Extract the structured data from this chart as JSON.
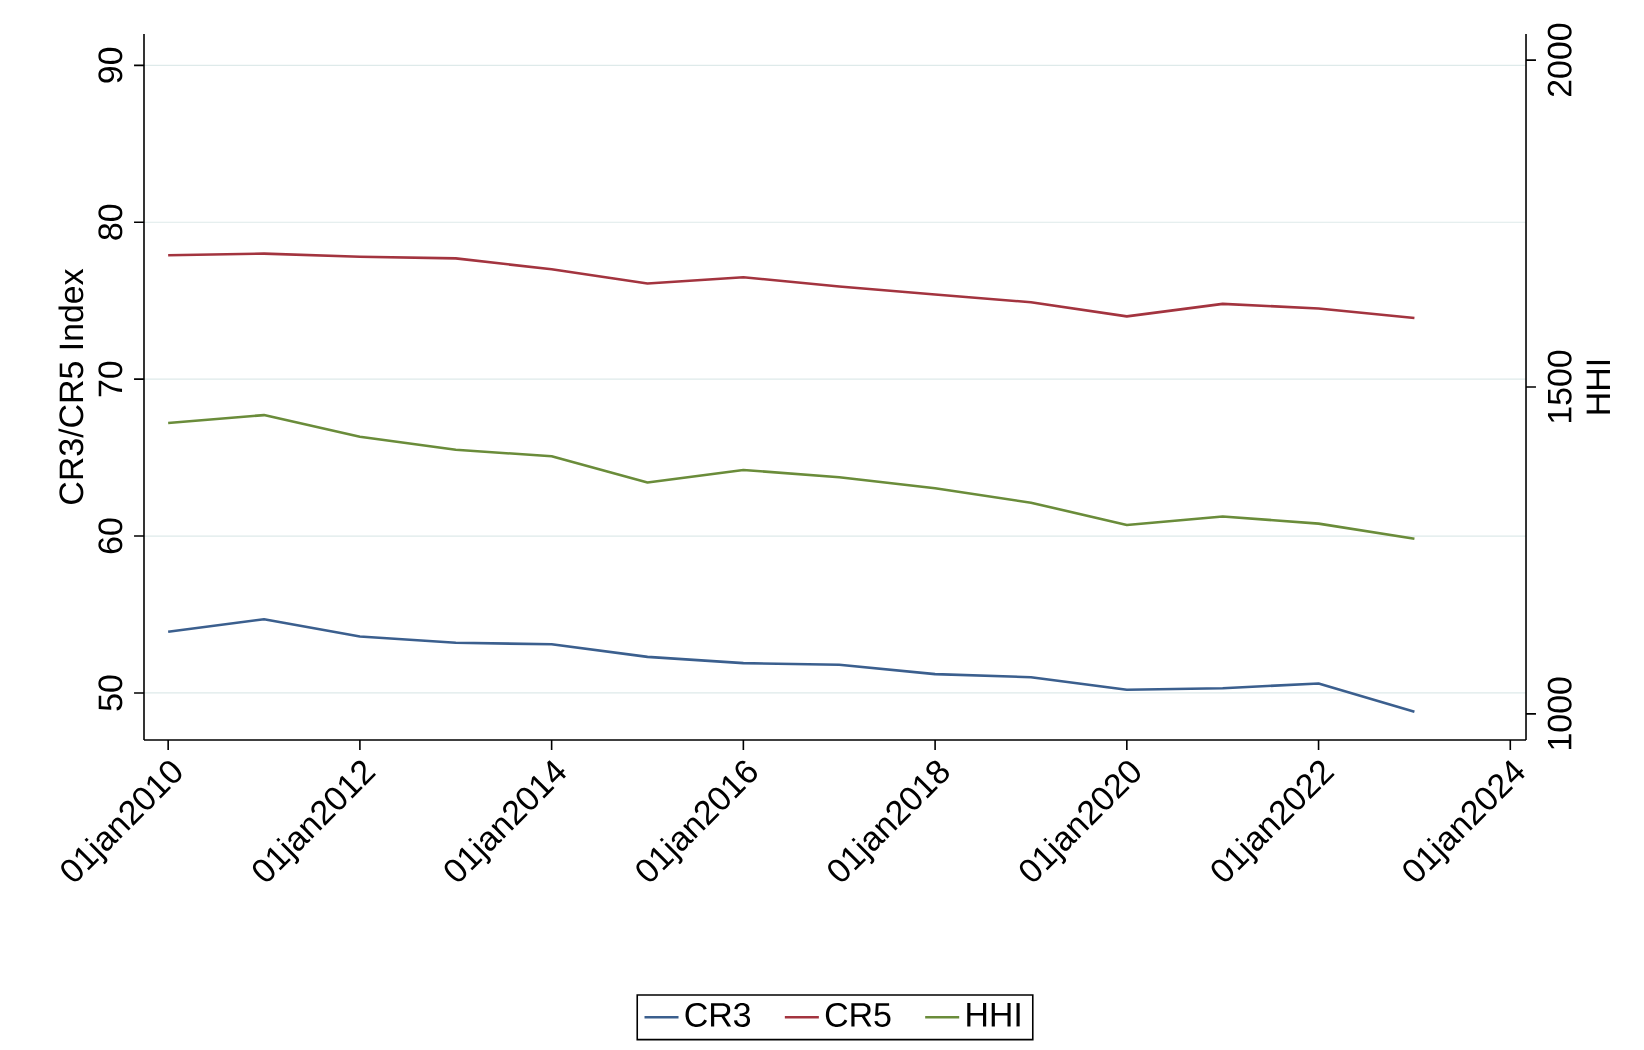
{
  "chart_data": {
    "type": "line",
    "ylabel": "CR3/CR5 Index",
    "y2label": "HHI",
    "x": [
      "2010-01-01",
      "2011-01-01",
      "2012-01-01",
      "2013-01-01",
      "2014-01-01",
      "2015-01-01",
      "2016-01-01",
      "2017-01-01",
      "2018-01-01",
      "2019-01-01",
      "2020-01-01",
      "2021-01-01",
      "2022-01-01",
      "2023-01-01"
    ],
    "series": [
      {
        "name": "CR3",
        "color": "#3b5f8e",
        "values": [
          53.9,
          54.7,
          53.6,
          53.2,
          53.1,
          52.3,
          51.9,
          51.8,
          51.2,
          51.0,
          50.2,
          50.3,
          50.6,
          48.8
        ]
      },
      {
        "name": "CR5",
        "color": "#a3343f",
        "values": [
          77.9,
          78.0,
          77.8,
          77.7,
          77.0,
          76.1,
          76.5,
          75.9,
          75.4,
          74.9,
          74.0,
          74.8,
          74.5,
          73.9
        ]
      },
      {
        "name": "HHI",
        "color": "#6a8c3a",
        "axis": "y2",
        "values": [
          1445,
          1457,
          1424,
          1404,
          1394,
          1354,
          1373,
          1362,
          1345,
          1323,
          1289,
          1302,
          1291,
          1268
        ]
      }
    ],
    "xlim": [
      "2009-10-01",
      "2024-03-01"
    ],
    "xticks": [
      {
        "value": "2010-01-01",
        "label": "01jan2010"
      },
      {
        "value": "2012-01-01",
        "label": "01jan2012"
      },
      {
        "value": "2014-01-01",
        "label": "01jan2014"
      },
      {
        "value": "2016-01-01",
        "label": "01jan2016"
      },
      {
        "value": "2018-01-01",
        "label": "01jan2018"
      },
      {
        "value": "2020-01-01",
        "label": "01jan2020"
      },
      {
        "value": "2022-01-01",
        "label": "01jan2022"
      },
      {
        "value": "2024-01-01",
        "label": "01jan2024"
      }
    ],
    "ylim": [
      47,
      92
    ],
    "yticks": [
      50,
      60,
      70,
      80,
      90
    ],
    "y2lim": [
      960,
      2040
    ],
    "y2ticks": [
      1000,
      1500,
      2000
    ],
    "grid": "y",
    "legend": "bottom"
  }
}
